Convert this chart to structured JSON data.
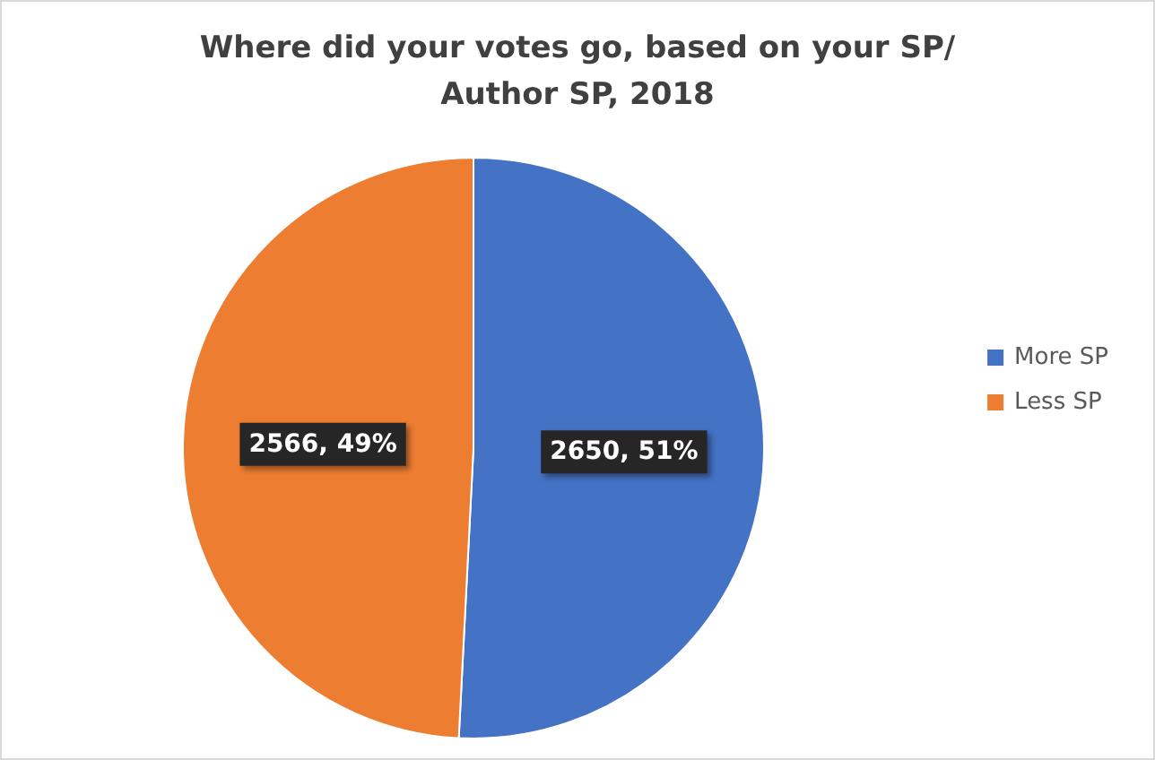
{
  "chart_data": {
    "type": "pie",
    "title": "Where did your votes go, based on your SP/Author SP, 2018",
    "categories": [
      "More SP",
      "Less SP"
    ],
    "values": [
      2650,
      2566
    ],
    "colors": [
      "#4472c4",
      "#ed7d31"
    ],
    "value_labels": [
      "2650, 51%",
      "2566, 49%"
    ],
    "legend": "right"
  }
}
